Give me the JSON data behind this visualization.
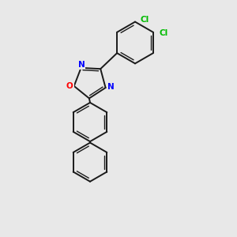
{
  "background_color": "#e8e8e8",
  "bond_color": "#1a1a1a",
  "N_color": "#0000ff",
  "O_color": "#ff0000",
  "Cl_color": "#00bb00",
  "figsize": [
    3.0,
    3.0
  ],
  "dpi": 100,
  "xlim": [
    0,
    10
  ],
  "ylim": [
    0,
    10
  ]
}
